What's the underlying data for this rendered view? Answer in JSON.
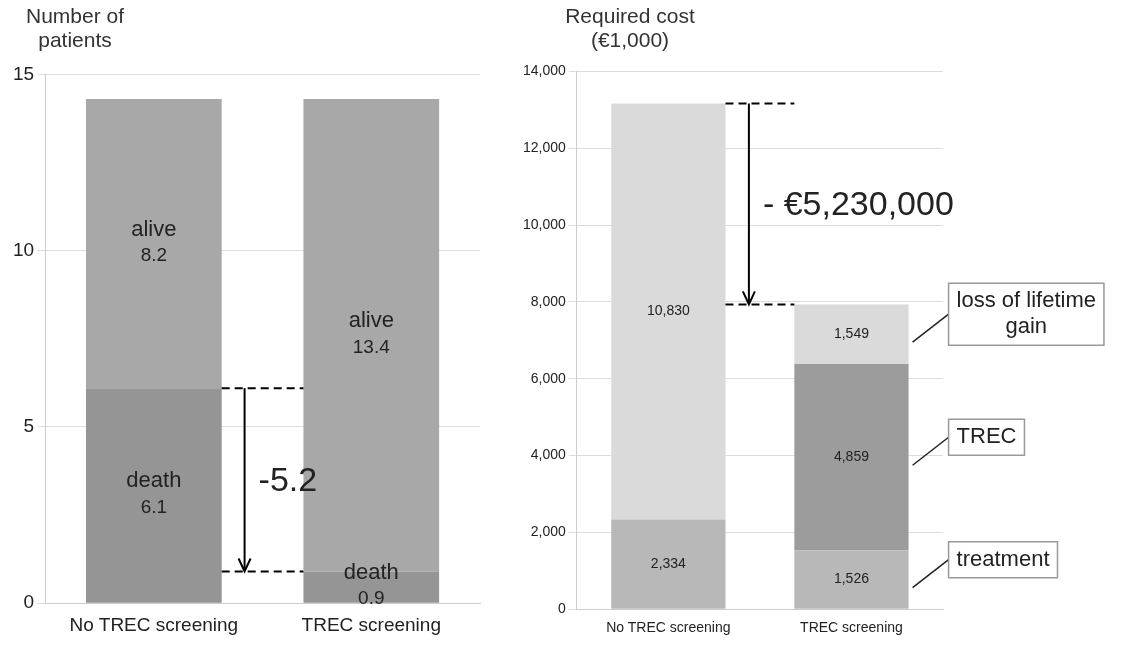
{
  "chart_data": [
    {
      "type": "bar",
      "ylabel": "Number of patients",
      "categories": [
        "No TREC screening",
        "TREC screening"
      ],
      "stacked": true,
      "series": [
        {
          "name": "death",
          "color": "#959595",
          "values": [
            6.1,
            0.9
          ]
        },
        {
          "name": "alive",
          "color": "#a8a8a8",
          "values": [
            8.2,
            13.4
          ]
        }
      ],
      "ylim": [
        0,
        15
      ],
      "yticks": [
        0,
        5,
        10,
        15
      ],
      "grid": "y",
      "legend": false,
      "data_labels": true,
      "ref_lines": [
        {
          "axis": "y",
          "value": 6.1,
          "line_style": "dashed",
          "color": "#000000"
        },
        {
          "axis": "y",
          "value": 0.9,
          "line_style": "dashed",
          "color": "#000000"
        }
      ],
      "annotations": [
        "-5.2"
      ]
    },
    {
      "type": "bar",
      "ylabel": "Required cost (€1,000)",
      "categories": [
        "No TREC screening",
        "TREC screening"
      ],
      "stacked": true,
      "series": [
        {
          "name": "treatment",
          "color": "#b8b8b8",
          "values": [
            2334,
            1526
          ],
          "value_labels": [
            "2,334",
            "1,526"
          ]
        },
        {
          "name": "TREC",
          "color": "#9c9c9c",
          "values": [
            null,
            4859
          ],
          "value_labels": [
            null,
            "4,859"
          ]
        },
        {
          "name": "loss of lifetime gain",
          "color": "#dadada",
          "values": [
            10830,
            1549
          ],
          "value_labels": [
            "10,830",
            "1,549"
          ]
        }
      ],
      "ylim": [
        0,
        14000
      ],
      "yticks": [
        {
          "value": 0,
          "label": "0"
        },
        {
          "value": 2000,
          "label": "2,000"
        },
        {
          "value": 4000,
          "label": "4,000"
        },
        {
          "value": 6000,
          "label": "6,000"
        },
        {
          "value": 8000,
          "label": "8,000"
        },
        {
          "value": 10000,
          "label": "10,000"
        },
        {
          "value": 12000,
          "label": "12,000"
        },
        {
          "value": 14000,
          "label": "14,000"
        }
      ],
      "grid": "y",
      "legend": "right",
      "data_labels": true,
      "ref_lines": [
        {
          "axis": "y",
          "value": 13164,
          "line_style": "dashed",
          "color": "#000000"
        },
        {
          "axis": "y",
          "value": 7934,
          "line_style": "dashed",
          "color": "#000000"
        }
      ],
      "annotations": [
        "- €5,230,000"
      ]
    }
  ]
}
